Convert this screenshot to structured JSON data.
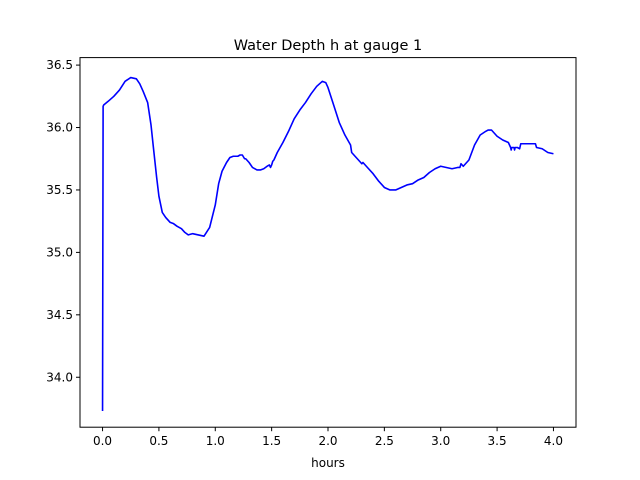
{
  "chart_data": {
    "type": "line",
    "title": "Water Depth h at gauge 1",
    "xlabel": "hours",
    "ylabel": "",
    "xlim": [
      -0.2,
      4.2
    ],
    "ylim": [
      33.6,
      36.56
    ],
    "xticks": [
      0.0,
      0.5,
      1.0,
      1.5,
      2.0,
      2.5,
      3.0,
      3.5,
      4.0
    ],
    "xtick_labels": [
      "0.0",
      "0.5",
      "1.0",
      "1.5",
      "2.0",
      "2.5",
      "3.0",
      "3.5",
      "4.0"
    ],
    "yticks": [
      34.0,
      34.5,
      35.0,
      35.5,
      36.0,
      36.5
    ],
    "ytick_labels": [
      "34.0",
      "34.5",
      "35.0",
      "35.5",
      "36.0",
      "36.5"
    ],
    "grid": false,
    "legend": "none",
    "series": [
      {
        "color": "#0000ff",
        "x": [
          0,
          0.005,
          0.01,
          0.05,
          0.1,
          0.15,
          0.2,
          0.25,
          0.3,
          0.33,
          0.36,
          0.4,
          0.43,
          0.45,
          0.48,
          0.5,
          0.53,
          0.56,
          0.6,
          0.63,
          0.66,
          0.7,
          0.73,
          0.76,
          0.8,
          0.85,
          0.9,
          0.95,
          1.0,
          1.03,
          1.06,
          1.1,
          1.13,
          1.16,
          1.2,
          1.22,
          1.24,
          1.26,
          1.27,
          1.3,
          1.33,
          1.35,
          1.37,
          1.4,
          1.43,
          1.46,
          1.48,
          1.49,
          1.5,
          1.51,
          1.52,
          1.53,
          1.55,
          1.6,
          1.65,
          1.7,
          1.75,
          1.8,
          1.85,
          1.9,
          1.95,
          1.98,
          2.0,
          2.05,
          2.1,
          2.15,
          2.2,
          2.21,
          2.25,
          2.3,
          2.31,
          2.35,
          2.4,
          2.45,
          2.5,
          2.55,
          2.6,
          2.65,
          2.7,
          2.75,
          2.8,
          2.85,
          2.9,
          2.95,
          3.0,
          3.05,
          3.1,
          3.15,
          3.17,
          3.18,
          3.2,
          3.25,
          3.3,
          3.35,
          3.4,
          3.42,
          3.45,
          3.5,
          3.55,
          3.6,
          3.62,
          3.625,
          3.63,
          3.65,
          3.655,
          3.66,
          3.68,
          3.7,
          3.71,
          3.75,
          3.8,
          3.84,
          3.85,
          3.9,
          3.95,
          4.0
        ],
        "y": [
          33.73,
          36.17,
          36.18,
          36.21,
          36.25,
          36.3,
          36.37,
          36.4,
          36.39,
          36.35,
          36.29,
          36.2,
          36.02,
          35.85,
          35.6,
          35.45,
          35.32,
          35.28,
          35.24,
          35.23,
          35.21,
          35.19,
          35.16,
          35.14,
          35.15,
          35.14,
          35.13,
          35.2,
          35.38,
          35.55,
          35.65,
          35.72,
          35.76,
          35.77,
          35.77,
          35.78,
          35.78,
          35.75,
          35.75,
          35.72,
          35.68,
          35.67,
          35.66,
          35.66,
          35.67,
          35.69,
          35.7,
          35.68,
          35.7,
          35.73,
          35.74,
          35.76,
          35.8,
          35.88,
          35.97,
          36.07,
          36.14,
          36.2,
          36.27,
          36.33,
          36.37,
          36.36,
          36.32,
          36.18,
          36.04,
          35.94,
          35.86,
          35.8,
          35.76,
          35.71,
          35.72,
          35.68,
          35.63,
          35.57,
          35.52,
          35.5,
          35.5,
          35.52,
          35.54,
          35.55,
          35.58,
          35.6,
          35.64,
          35.67,
          35.69,
          35.68,
          35.67,
          35.68,
          35.68,
          35.71,
          35.69,
          35.74,
          35.86,
          35.94,
          35.97,
          35.98,
          35.98,
          35.93,
          35.9,
          35.88,
          35.84,
          35.82,
          35.84,
          35.84,
          35.82,
          35.84,
          35.84,
          35.83,
          35.87,
          35.87,
          35.87,
          35.87,
          35.84,
          35.83,
          35.8,
          35.79
        ]
      }
    ]
  }
}
